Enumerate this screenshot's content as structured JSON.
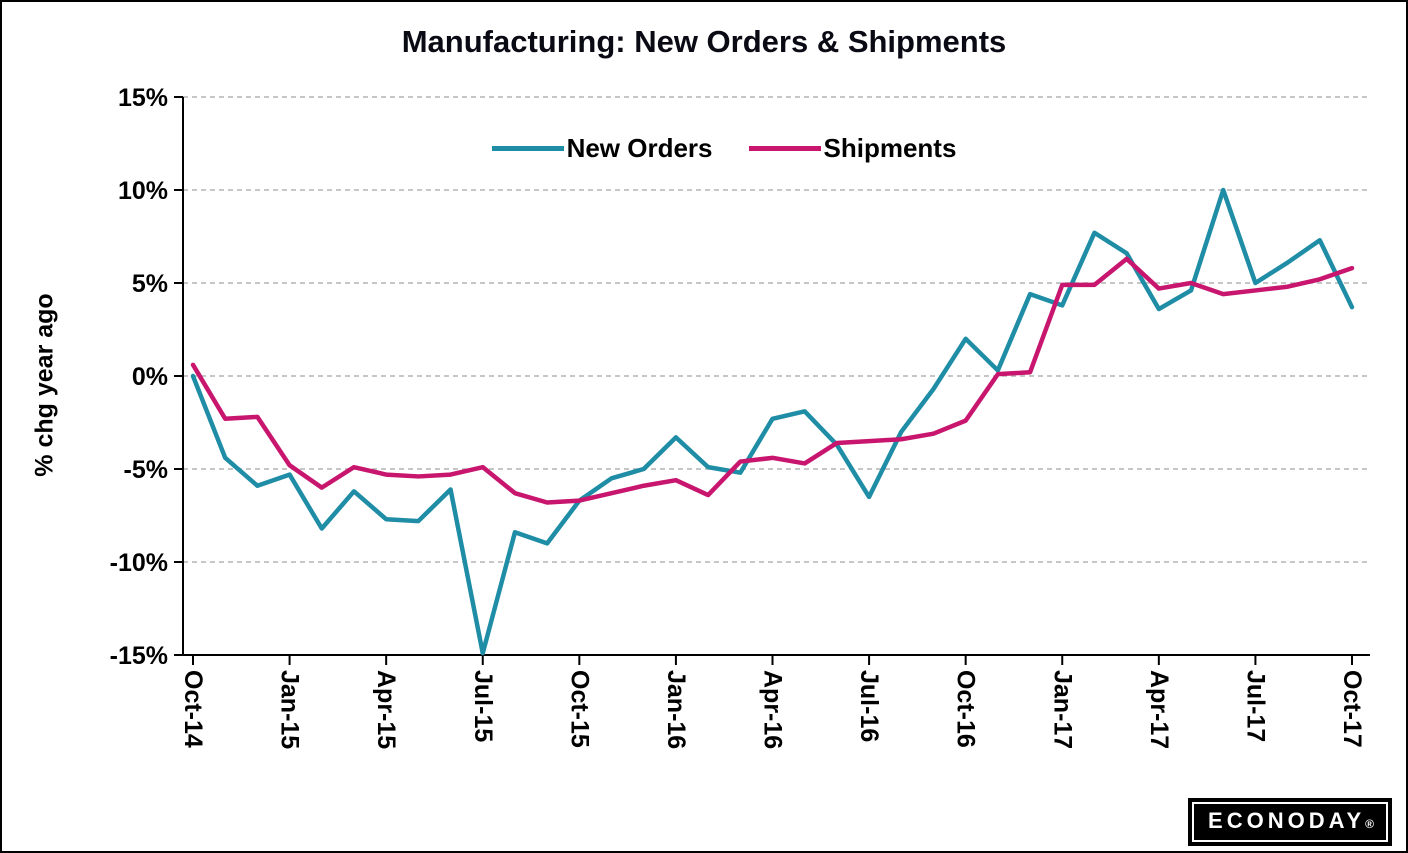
{
  "logo": {
    "text": "ECONODAY",
    "reg": "®"
  },
  "chart_data": {
    "type": "line",
    "title": "Manufacturing: New Orders & Shipments",
    "xlabel": "",
    "ylabel": "% chg year ago",
    "ylim": [
      -15,
      15
    ],
    "grid": true,
    "legend_position": "top-center",
    "y_ticks": [
      15,
      10,
      5,
      0,
      -5,
      -10,
      -15
    ],
    "y_tick_labels": [
      "15%",
      "10%",
      "5%",
      "0%",
      "-5%",
      "-10%",
      "-15%"
    ],
    "x_tick_every": 3,
    "x_tick_labels": [
      "Oct-14",
      "Jan-15",
      "Apr-15",
      "Jul-15",
      "Oct-15",
      "Jan-16",
      "Apr-16",
      "Jul-16",
      "Oct-16",
      "Jan-17",
      "Apr-17",
      "Jul-17",
      "Oct-17"
    ],
    "x": [
      "Oct-14",
      "Nov-14",
      "Dec-14",
      "Jan-15",
      "Feb-15",
      "Mar-15",
      "Apr-15",
      "May-15",
      "Jun-15",
      "Jul-15",
      "Aug-15",
      "Sep-15",
      "Oct-15",
      "Nov-15",
      "Dec-15",
      "Jan-16",
      "Feb-16",
      "Mar-16",
      "Apr-16",
      "May-16",
      "Jun-16",
      "Jul-16",
      "Aug-16",
      "Sep-16",
      "Oct-16",
      "Nov-16",
      "Dec-16",
      "Jan-17",
      "Feb-17",
      "Mar-17",
      "Apr-17",
      "May-17",
      "Jun-17",
      "Jul-17",
      "Aug-17",
      "Sep-17",
      "Oct-17"
    ],
    "series": [
      {
        "name": "New Orders",
        "color": "#1f8da6",
        "values": [
          0.0,
          -4.4,
          -5.9,
          -5.3,
          -8.2,
          -6.2,
          -7.7,
          -7.8,
          -6.1,
          -14.9,
          -8.4,
          -9.0,
          -6.7,
          -5.5,
          -5.0,
          -3.3,
          -4.9,
          -5.2,
          -2.3,
          -1.9,
          -3.7,
          -6.5,
          -3.0,
          -0.7,
          2.0,
          0.3,
          4.4,
          3.8,
          7.7,
          6.6,
          3.6,
          4.6,
          10.0,
          5.0,
          6.1,
          7.3,
          3.7
        ]
      },
      {
        "name": "Shipments",
        "color": "#c8166e",
        "values": [
          0.6,
          -2.3,
          -2.2,
          -4.8,
          -6.0,
          -4.9,
          -5.3,
          -5.4,
          -5.3,
          -4.9,
          -6.3,
          -6.8,
          -6.7,
          -6.3,
          -5.9,
          -5.6,
          -6.4,
          -4.6,
          -4.4,
          -4.7,
          -3.6,
          -3.5,
          -3.4,
          -3.1,
          -2.4,
          0.1,
          0.2,
          4.9,
          4.9,
          6.3,
          4.7,
          5.0,
          4.4,
          4.6,
          4.8,
          5.2,
          5.8
        ]
      }
    ]
  }
}
